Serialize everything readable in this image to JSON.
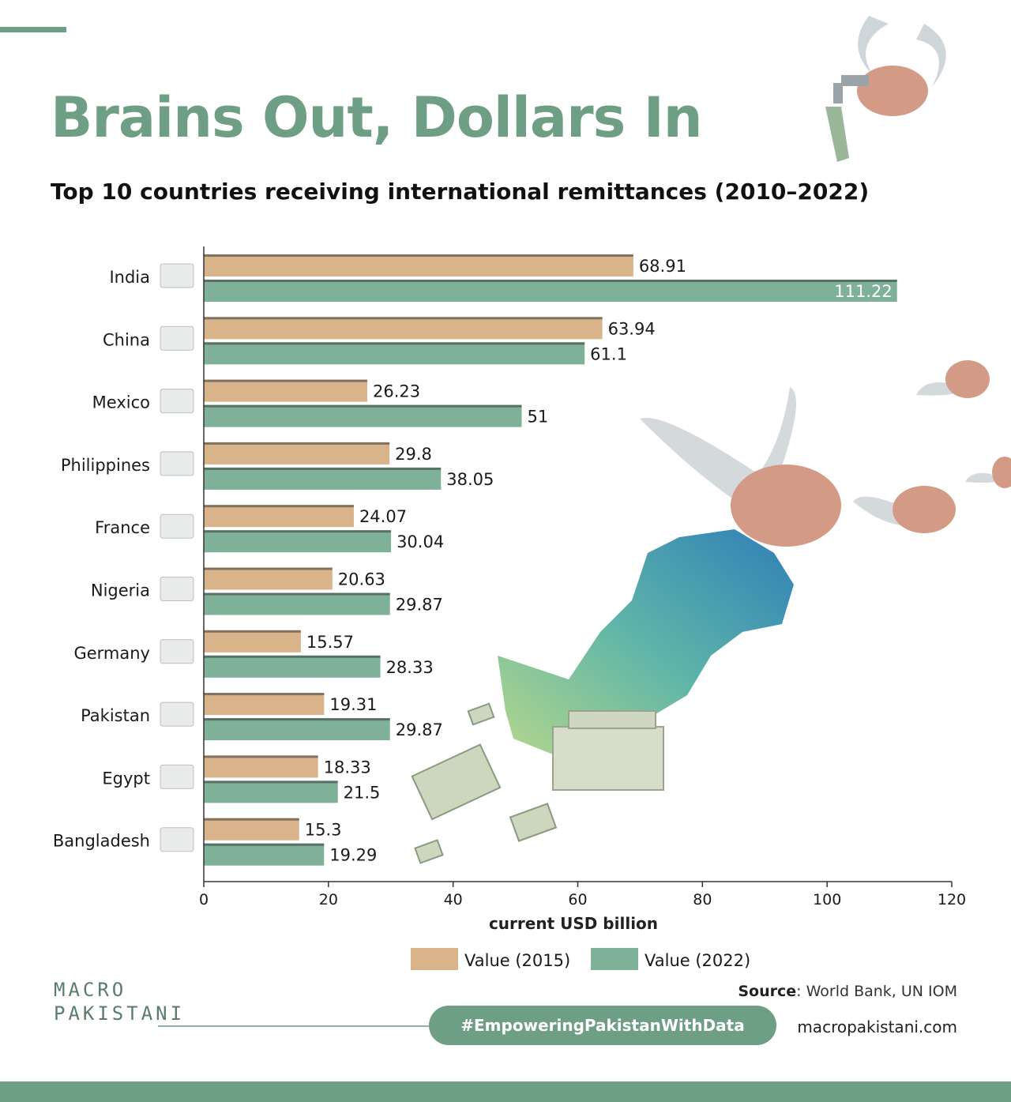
{
  "header": {
    "title": "Brains Out, Dollars In",
    "subtitle": "Top 10 countries receiving international remittances (2010–2022)"
  },
  "colors": {
    "accent": "#6e9e84",
    "bar_2015": "#d9b48a",
    "bar_2022": "#7fb199"
  },
  "chart_data": {
    "type": "bar",
    "orientation": "horizontal",
    "categories": [
      "India",
      "China",
      "Mexico",
      "Philippines",
      "France",
      "Nigeria",
      "Germany",
      "Pakistan",
      "Egypt",
      "Bangladesh"
    ],
    "series": [
      {
        "name": "Value (2015)",
        "values": [
          68.91,
          63.94,
          26.23,
          29.8,
          24.07,
          20.63,
          15.57,
          19.31,
          18.33,
          15.3
        ]
      },
      {
        "name": "Value (2022)",
        "values": [
          111.22,
          61.1,
          51,
          38.05,
          30.04,
          29.87,
          28.33,
          29.87,
          21.5,
          19.29
        ]
      }
    ],
    "value_labels": [
      [
        "68.91",
        "63.94",
        "26.23",
        "29.8",
        "24.07",
        "20.63",
        "15.57",
        "19.31",
        "18.33",
        "15.3"
      ],
      [
        "111.22",
        "61.1",
        "51",
        "38.05",
        "30.04",
        "29.87",
        "28.33",
        "29.87",
        "21.5",
        "19.29"
      ]
    ],
    "xlabel": "current USD billion",
    "ylabel": "",
    "xlim": [
      0,
      120
    ],
    "xticks": [
      "0",
      "20",
      "40",
      "60",
      "80",
      "100",
      "120"
    ],
    "grid": false,
    "legend_placement": "bottom-center"
  },
  "footer": {
    "source_label": "Source",
    "source_text": ": World Bank, UN IOM",
    "hashtag": "#EmpoweringPakistanWithData",
    "website": "macropakistani.com",
    "logo_line1": "MACRO",
    "logo_line2": "PAKISTANI"
  }
}
